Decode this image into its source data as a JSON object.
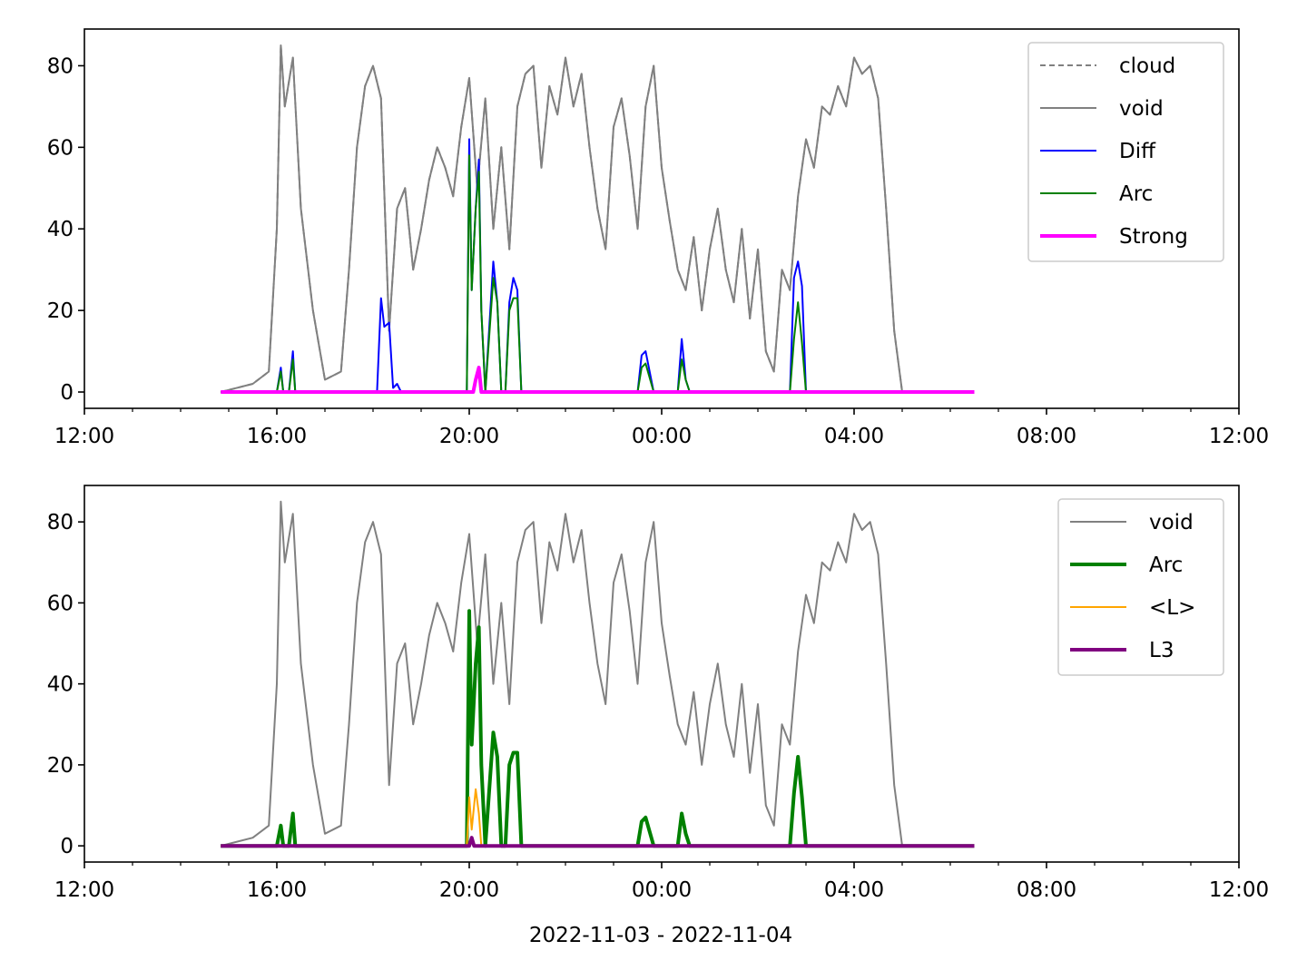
{
  "figure": {
    "xlabel": "2022-11-03 - 2022-11-04"
  },
  "colors": {
    "cloud": "#808080",
    "void": "#808080",
    "Diff": "#0000ff",
    "Arc": "#008000",
    "Strong": "#ff00ff",
    "L_avg": "#ffa500",
    "L3": "#800080"
  },
  "chart_data": [
    {
      "type": "line",
      "xlim": [
        "2022-11-03 12:00",
        "2022-11-04 12:00"
      ],
      "ylim": [
        -4,
        89
      ],
      "xticks": [
        "12:00",
        "16:00",
        "20:00",
        "00:00",
        "04:00",
        "08:00",
        "12:00"
      ],
      "yticks": [
        "0",
        "20",
        "40",
        "60",
        "80"
      ],
      "legend_position": "top-right",
      "legend": [
        "cloud",
        "void",
        "Diff",
        "Arc",
        "Strong"
      ],
      "series": [
        {
          "name": "cloud",
          "style": "dashed",
          "x": [
            "14:50",
            "15:30",
            "15:50",
            "16:00",
            "16:05",
            "16:10",
            "16:20",
            "16:30",
            "16:45",
            "17:00",
            "17:20",
            "17:30",
            "17:40",
            "17:50",
            "18:00",
            "18:10",
            "18:20",
            "18:30",
            "18:40",
            "18:50",
            "19:00",
            "19:10",
            "19:20",
            "19:30",
            "19:40",
            "19:50",
            "20:00",
            "20:10",
            "20:20",
            "20:30",
            "20:40",
            "20:50",
            "21:00",
            "21:10",
            "21:20",
            "21:30",
            "21:40",
            "21:50",
            "22:00",
            "22:10",
            "22:20",
            "22:30",
            "22:40",
            "22:50",
            "23:00",
            "23:10",
            "23:20",
            "23:30",
            "23:40",
            "23:50",
            "00:00",
            "00:10",
            "00:20",
            "00:30",
            "00:40",
            "00:50",
            "01:00",
            "01:10",
            "01:20",
            "01:30",
            "01:40",
            "01:50",
            "02:00",
            "02:10",
            "02:20",
            "02:30",
            "02:40",
            "02:50",
            "03:00",
            "03:10",
            "03:20",
            "03:30",
            "03:40",
            "03:50",
            "04:00",
            "04:10",
            "04:20",
            "04:30",
            "04:40",
            "04:50",
            "05:00",
            "05:10",
            "06:30"
          ],
          "values": [
            0,
            2,
            5,
            40,
            85,
            70,
            82,
            45,
            20,
            3,
            5,
            30,
            60,
            75,
            80,
            72,
            15,
            45,
            50,
            30,
            40,
            52,
            60,
            55,
            48,
            65,
            77,
            50,
            72,
            40,
            60,
            35,
            70,
            78,
            80,
            55,
            75,
            68,
            82,
            70,
            78,
            60,
            45,
            35,
            65,
            72,
            58,
            40,
            70,
            80,
            55,
            42,
            30,
            25,
            38,
            20,
            35,
            45,
            30,
            22,
            40,
            18,
            35,
            10,
            5,
            30,
            25,
            48,
            62,
            55,
            70,
            68,
            75,
            70,
            82,
            78,
            80,
            72,
            45,
            15,
            0,
            0,
            0
          ]
        },
        {
          "name": "void",
          "style": "solid",
          "x": [
            "14:50",
            "15:30",
            "15:50",
            "16:00",
            "16:05",
            "16:10",
            "16:20",
            "16:30",
            "16:45",
            "17:00",
            "17:20",
            "17:30",
            "17:40",
            "17:50",
            "18:00",
            "18:10",
            "18:20",
            "18:30",
            "18:40",
            "18:50",
            "19:00",
            "19:10",
            "19:20",
            "19:30",
            "19:40",
            "19:50",
            "20:00",
            "20:10",
            "20:20",
            "20:30",
            "20:40",
            "20:50",
            "21:00",
            "21:10",
            "21:20",
            "21:30",
            "21:40",
            "21:50",
            "22:00",
            "22:10",
            "22:20",
            "22:30",
            "22:40",
            "22:50",
            "23:00",
            "23:10",
            "23:20",
            "23:30",
            "23:40",
            "23:50",
            "00:00",
            "00:10",
            "00:20",
            "00:30",
            "00:40",
            "00:50",
            "01:00",
            "01:10",
            "01:20",
            "01:30",
            "01:40",
            "01:50",
            "02:00",
            "02:10",
            "02:20",
            "02:30",
            "02:40",
            "02:50",
            "03:00",
            "03:10",
            "03:20",
            "03:30",
            "03:40",
            "03:50",
            "04:00",
            "04:10",
            "04:20",
            "04:30",
            "04:40",
            "04:50",
            "05:00",
            "05:10",
            "06:30"
          ],
          "values": [
            0,
            2,
            5,
            40,
            85,
            70,
            82,
            45,
            20,
            3,
            5,
            30,
            60,
            75,
            80,
            72,
            15,
            45,
            50,
            30,
            40,
            52,
            60,
            55,
            48,
            65,
            77,
            50,
            72,
            40,
            60,
            35,
            70,
            78,
            80,
            55,
            75,
            68,
            82,
            70,
            78,
            60,
            45,
            35,
            65,
            72,
            58,
            40,
            70,
            80,
            55,
            42,
            30,
            25,
            38,
            20,
            35,
            45,
            30,
            22,
            40,
            18,
            35,
            10,
            5,
            30,
            25,
            48,
            62,
            55,
            70,
            68,
            75,
            70,
            82,
            78,
            80,
            72,
            45,
            15,
            0,
            0,
            0
          ]
        },
        {
          "name": "Diff",
          "style": "solid",
          "x": [
            "14:50",
            "16:00",
            "16:05",
            "16:08",
            "16:15",
            "16:20",
            "16:23",
            "16:30",
            "18:05",
            "18:10",
            "18:14",
            "18:20",
            "18:25",
            "18:30",
            "18:35",
            "19:50",
            "19:57",
            "20:00",
            "20:03",
            "20:08",
            "20:12",
            "20:15",
            "20:20",
            "20:30",
            "20:35",
            "20:40",
            "20:45",
            "20:50",
            "20:55",
            "21:00",
            "21:05",
            "21:10",
            "21:40",
            "23:30",
            "23:35",
            "23:40",
            "23:50",
            "00:20",
            "00:25",
            "00:30",
            "00:35",
            "00:40",
            "02:40",
            "02:45",
            "02:50",
            "02:55",
            "03:00",
            "03:05",
            "06:30"
          ],
          "values": [
            0,
            0,
            6,
            0,
            0,
            10,
            0,
            0,
            0,
            23,
            16,
            17,
            1,
            2,
            0,
            0,
            0,
            62,
            25,
            45,
            57,
            20,
            0,
            32,
            22,
            0,
            0,
            22,
            28,
            25,
            0,
            0,
            0,
            0,
            9,
            10,
            0,
            0,
            13,
            3,
            0,
            0,
            0,
            28,
            32,
            26,
            0,
            0,
            0
          ]
        },
        {
          "name": "Arc",
          "style": "solid",
          "x": [
            "14:50",
            "16:00",
            "16:05",
            "16:08",
            "16:15",
            "16:20",
            "16:23",
            "16:30",
            "19:57",
            "20:00",
            "20:03",
            "20:08",
            "20:12",
            "20:15",
            "20:20",
            "20:30",
            "20:35",
            "20:40",
            "20:45",
            "20:50",
            "20:55",
            "21:00",
            "21:05",
            "21:10",
            "23:30",
            "23:35",
            "23:40",
            "23:50",
            "00:20",
            "00:25",
            "00:30",
            "00:35",
            "02:40",
            "02:45",
            "02:50",
            "02:55",
            "03:00",
            "03:05",
            "06:30"
          ],
          "values": [
            0,
            0,
            5,
            0,
            0,
            8,
            0,
            0,
            0,
            58,
            25,
            45,
            54,
            20,
            0,
            28,
            22,
            0,
            0,
            20,
            23,
            23,
            0,
            0,
            0,
            6,
            7,
            0,
            0,
            8,
            3,
            0,
            0,
            13,
            22,
            12,
            0,
            0,
            0
          ]
        },
        {
          "name": "Strong",
          "style": "solid",
          "x": [
            "14:50",
            "20:05",
            "20:08",
            "20:12",
            "20:15",
            "06:30"
          ],
          "values": [
            0,
            0,
            3,
            6,
            0,
            0
          ]
        }
      ]
    },
    {
      "type": "line",
      "xlim": [
        "2022-11-03 12:00",
        "2022-11-04 12:00"
      ],
      "ylim": [
        -4,
        89
      ],
      "xticks": [
        "12:00",
        "16:00",
        "20:00",
        "00:00",
        "04:00",
        "08:00",
        "12:00"
      ],
      "yticks": [
        "0",
        "20",
        "40",
        "60",
        "80"
      ],
      "legend_position": "top-right",
      "legend": [
        "void",
        "Arc",
        "<L>",
        "L3"
      ],
      "series": [
        {
          "name": "void",
          "style": "solid",
          "x": [
            "14:50",
            "15:30",
            "15:50",
            "16:00",
            "16:05",
            "16:10",
            "16:20",
            "16:30",
            "16:45",
            "17:00",
            "17:20",
            "17:30",
            "17:40",
            "17:50",
            "18:00",
            "18:10",
            "18:20",
            "18:30",
            "18:40",
            "18:50",
            "19:00",
            "19:10",
            "19:20",
            "19:30",
            "19:40",
            "19:50",
            "20:00",
            "20:10",
            "20:20",
            "20:30",
            "20:40",
            "20:50",
            "21:00",
            "21:10",
            "21:20",
            "21:30",
            "21:40",
            "21:50",
            "22:00",
            "22:10",
            "22:20",
            "22:30",
            "22:40",
            "22:50",
            "23:00",
            "23:10",
            "23:20",
            "23:30",
            "23:40",
            "23:50",
            "00:00",
            "00:10",
            "00:20",
            "00:30",
            "00:40",
            "00:50",
            "01:00",
            "01:10",
            "01:20",
            "01:30",
            "01:40",
            "01:50",
            "02:00",
            "02:10",
            "02:20",
            "02:30",
            "02:40",
            "02:50",
            "03:00",
            "03:10",
            "03:20",
            "03:30",
            "03:40",
            "03:50",
            "04:00",
            "04:10",
            "04:20",
            "04:30",
            "04:40",
            "04:50",
            "05:00",
            "05:10",
            "06:30"
          ],
          "values": [
            0,
            2,
            5,
            40,
            85,
            70,
            82,
            45,
            20,
            3,
            5,
            30,
            60,
            75,
            80,
            72,
            15,
            45,
            50,
            30,
            40,
            52,
            60,
            55,
            48,
            65,
            77,
            50,
            72,
            40,
            60,
            35,
            70,
            78,
            80,
            55,
            75,
            68,
            82,
            70,
            78,
            60,
            45,
            35,
            65,
            72,
            58,
            40,
            70,
            80,
            55,
            42,
            30,
            25,
            38,
            20,
            35,
            45,
            30,
            22,
            40,
            18,
            35,
            10,
            5,
            30,
            25,
            48,
            62,
            55,
            70,
            68,
            75,
            70,
            82,
            78,
            80,
            72,
            45,
            15,
            0,
            0,
            0
          ]
        },
        {
          "name": "Arc",
          "style": "solid",
          "x": [
            "14:50",
            "16:00",
            "16:05",
            "16:08",
            "16:15",
            "16:20",
            "16:23",
            "16:30",
            "19:57",
            "20:00",
            "20:03",
            "20:08",
            "20:12",
            "20:15",
            "20:20",
            "20:30",
            "20:35",
            "20:40",
            "20:45",
            "20:50",
            "20:55",
            "21:00",
            "21:05",
            "21:10",
            "23:30",
            "23:35",
            "23:40",
            "23:50",
            "00:20",
            "00:25",
            "00:30",
            "00:35",
            "02:40",
            "02:45",
            "02:50",
            "02:55",
            "03:00",
            "03:05",
            "06:30"
          ],
          "values": [
            0,
            0,
            5,
            0,
            0,
            8,
            0,
            0,
            0,
            58,
            25,
            45,
            54,
            20,
            0,
            28,
            22,
            0,
            0,
            20,
            23,
            23,
            0,
            0,
            0,
            6,
            7,
            0,
            0,
            8,
            3,
            0,
            0,
            13,
            22,
            12,
            0,
            0,
            0
          ]
        },
        {
          "name": "<L>",
          "style": "solid",
          "x": [
            "14:50",
            "19:57",
            "20:00",
            "20:03",
            "20:08",
            "20:12",
            "20:15",
            "06:30"
          ],
          "values": [
            0,
            0,
            12,
            4,
            14,
            8,
            0,
            0
          ]
        },
        {
          "name": "L3",
          "style": "solid",
          "x": [
            "14:50",
            "20:00",
            "20:03",
            "20:06",
            "06:30"
          ],
          "values": [
            0,
            0,
            2,
            0,
            0
          ]
        }
      ]
    }
  ]
}
